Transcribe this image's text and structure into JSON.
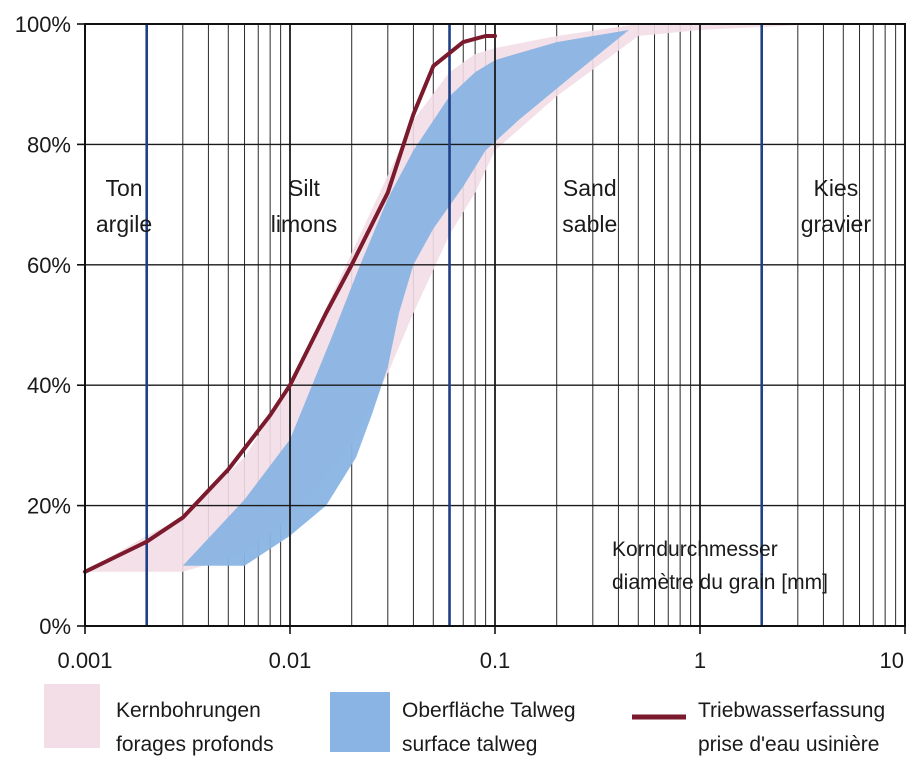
{
  "chart_data": {
    "type": "area",
    "x_scale": "log",
    "xlim": [
      0.001,
      10
    ],
    "ylim": [
      0,
      100
    ],
    "grid": true,
    "x_ticks": [
      {
        "value": 0.001,
        "label": "0.001"
      },
      {
        "value": 0.01,
        "label": "0.01"
      },
      {
        "value": 0.1,
        "label": "0.1"
      },
      {
        "value": 1,
        "label": "1"
      },
      {
        "value": 10,
        "label": "10"
      }
    ],
    "y_ticks": [
      {
        "value": 0,
        "label": "0%"
      },
      {
        "value": 20,
        "label": "20%"
      },
      {
        "value": 40,
        "label": "40%"
      },
      {
        "value": 60,
        "label": "60%"
      },
      {
        "value": 80,
        "label": "80%"
      },
      {
        "value": 100,
        "label": "100%"
      }
    ],
    "class_boundaries": [
      0.002,
      0.06,
      2
    ],
    "zones": [
      {
        "line1": "Ton",
        "line2": "argile",
        "x": 0.00155
      },
      {
        "line1": "Silt",
        "line2": "limons",
        "x": 0.0117
      },
      {
        "line1": "Sand",
        "line2": "sable",
        "x": 0.29
      },
      {
        "line1": "Kies",
        "line2": "gravier",
        "x": 4.6
      }
    ],
    "axis_note": [
      "Korndurchmesser",
      "diamètre du grain [mm]"
    ],
    "series": [
      {
        "name_line1": "Kernbohrungen",
        "name_line2": "forages profonds",
        "kind": "band",
        "color": "#f3dde6",
        "upper": [
          [
            0.001,
            9
          ],
          [
            0.002,
            15
          ],
          [
            0.003,
            18
          ],
          [
            0.006,
            28
          ],
          [
            0.01,
            40
          ],
          [
            0.02,
            62
          ],
          [
            0.04,
            84
          ],
          [
            0.06,
            92
          ],
          [
            0.08,
            95
          ],
          [
            0.1,
            96
          ],
          [
            0.2,
            98
          ],
          [
            0.5,
            100
          ],
          [
            2,
            100
          ],
          [
            4,
            100
          ]
        ],
        "lower": [
          [
            4,
            100
          ],
          [
            1,
            99
          ],
          [
            0.5,
            98
          ],
          [
            0.2,
            88
          ],
          [
            0.1,
            79
          ],
          [
            0.08,
            72
          ],
          [
            0.06,
            65
          ],
          [
            0.04,
            52
          ],
          [
            0.03,
            42
          ],
          [
            0.02,
            30
          ],
          [
            0.01,
            18
          ],
          [
            0.006,
            12
          ],
          [
            0.003,
            9
          ],
          [
            0.002,
            9
          ],
          [
            0.001,
            9
          ]
        ]
      },
      {
        "name_line1": "Oberfläche Talweg",
        "name_line2": "surface talweg",
        "kind": "band",
        "color": "#8ab4e3",
        "upper": [
          [
            0.003,
            10
          ],
          [
            0.006,
            21
          ],
          [
            0.01,
            31
          ],
          [
            0.016,
            48
          ],
          [
            0.022,
            60
          ],
          [
            0.03,
            71
          ],
          [
            0.04,
            79
          ],
          [
            0.06,
            88
          ],
          [
            0.08,
            92
          ],
          [
            0.1,
            94
          ],
          [
            0.2,
            97
          ],
          [
            0.3,
            98
          ],
          [
            0.45,
            99
          ]
        ],
        "lower": [
          [
            0.45,
            99
          ],
          [
            0.25,
            92
          ],
          [
            0.13,
            84
          ],
          [
            0.09,
            79
          ],
          [
            0.07,
            73
          ],
          [
            0.05,
            66
          ],
          [
            0.04,
            60
          ],
          [
            0.034,
            52
          ],
          [
            0.03,
            43
          ],
          [
            0.025,
            35
          ],
          [
            0.021,
            28
          ],
          [
            0.015,
            20
          ],
          [
            0.01,
            15
          ],
          [
            0.006,
            10
          ],
          [
            0.003,
            10
          ]
        ]
      },
      {
        "name_line1": "Triebwasserfassung",
        "name_line2": "prise d'eau usinière",
        "kind": "line",
        "color": "#7a1a2c",
        "points": [
          [
            0.001,
            9
          ],
          [
            0.002,
            14
          ],
          [
            0.003,
            18
          ],
          [
            0.005,
            26
          ],
          [
            0.008,
            35
          ],
          [
            0.01,
            40
          ],
          [
            0.015,
            52
          ],
          [
            0.02,
            60
          ],
          [
            0.03,
            72
          ],
          [
            0.04,
            85
          ],
          [
            0.05,
            93
          ],
          [
            0.07,
            97
          ],
          [
            0.09,
            98
          ],
          [
            0.1,
            98
          ]
        ]
      }
    ]
  }
}
